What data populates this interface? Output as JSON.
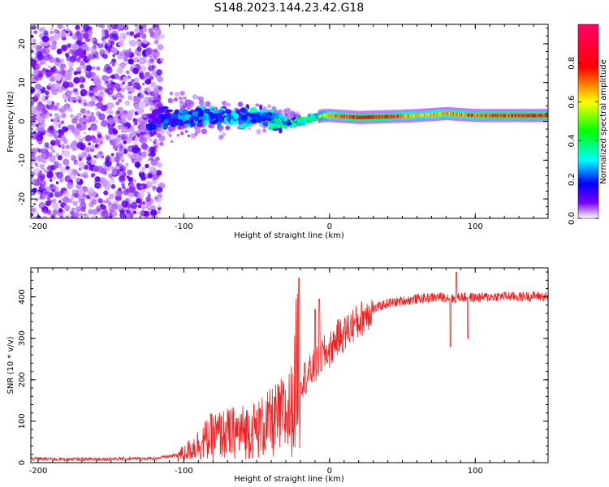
{
  "title": "S148.2023.144.23.42.G18",
  "chart_data": [
    {
      "type": "heatmap",
      "title": "",
      "xlabel": "Height of straight line (km)",
      "ylabel": "Frequency (Hz)",
      "xlim": [
        -205,
        150
      ],
      "ylim": [
        -25,
        25
      ],
      "xticks": [
        -200,
        -100,
        0,
        100
      ],
      "xtick_labels": [
        "-200",
        "-100",
        "0",
        "100"
      ],
      "yticks": [
        -20,
        -10,
        0,
        10,
        20
      ],
      "ytick_labels": [
        "-20",
        "-10",
        "0",
        "10",
        "20"
      ],
      "colorbar": {
        "label": "Normalized spectral amplitude",
        "range": [
          0,
          1
        ],
        "ticks": [
          0.0,
          0.2,
          0.4,
          0.6,
          0.8
        ],
        "tick_labels": [
          "0.0",
          "0.2",
          "0.4",
          "0.6",
          "0.8"
        ],
        "colormap": [
          "#ffffff",
          "#7a00ff",
          "#0000ff",
          "#00ffff",
          "#00ff00",
          "#ffff00",
          "#ff0000",
          "#ff0066"
        ]
      },
      "description_points": {
        "scatter_region_km": [
          -205,
          -115
        ],
        "scatter_amplitude": [
          0.0,
          0.15
        ],
        "signal_line": {
          "x": [
            -125,
            -100,
            -80,
            -60,
            -45,
            -35,
            -25,
            -15,
            -5,
            0,
            20,
            40,
            60,
            80,
            100,
            120,
            150
          ],
          "freq": [
            0.5,
            1.0,
            1.5,
            1.0,
            1.5,
            0.0,
            -0.5,
            0.5,
            1.5,
            1.5,
            1.0,
            1.2,
            1.5,
            2.0,
            1.5,
            1.5,
            1.5
          ],
          "amplitude": [
            0.2,
            0.3,
            0.35,
            0.35,
            0.35,
            0.45,
            0.5,
            0.55,
            0.6,
            0.7,
            0.85,
            0.8,
            0.65,
            0.7,
            0.75,
            0.8,
            0.8
          ]
        }
      }
    },
    {
      "type": "line",
      "title": "",
      "xlabel": "Height of straight line (km)",
      "ylabel": "SNR (10 * v/v)",
      "xlim": [
        -205,
        150
      ],
      "ylim": [
        0,
        470
      ],
      "xticks": [
        -200,
        -100,
        0,
        100
      ],
      "xtick_labels": [
        "-200",
        "-100",
        "0",
        "100"
      ],
      "yticks": [
        0,
        100,
        200,
        300,
        400
      ],
      "ytick_labels": [
        "0",
        "100",
        "200",
        "300",
        "400"
      ],
      "color": "#ee2222",
      "series": [
        {
          "name": "SNR",
          "x": [
            -205,
            -180,
            -150,
            -120,
            -105,
            -100,
            -90,
            -80,
            -70,
            -60,
            -50,
            -40,
            -35,
            -30,
            -25,
            -22,
            -20,
            -15,
            -10,
            -5,
            0,
            5,
            10,
            15,
            20,
            25,
            30,
            40,
            50,
            60,
            70,
            80,
            85,
            90,
            100,
            110,
            120,
            130,
            140,
            150
          ],
          "values": [
            10,
            8,
            9,
            10,
            18,
            22,
            45,
            65,
            70,
            75,
            80,
            95,
            105,
            115,
            130,
            250,
            200,
            210,
            230,
            260,
            270,
            300,
            310,
            330,
            340,
            360,
            370,
            385,
            390,
            395,
            398,
            400,
            395,
            400,
            398,
            400,
            402,
            400,
            402,
            400
          ]
        }
      ],
      "spikes": [
        {
          "x": -21,
          "value": 445
        },
        {
          "x": -10,
          "value": 370
        },
        {
          "x": -7,
          "value": 395
        },
        {
          "x": 83,
          "value": 280
        },
        {
          "x": 87,
          "value": 460
        },
        {
          "x": 95,
          "value": 300
        }
      ]
    }
  ]
}
